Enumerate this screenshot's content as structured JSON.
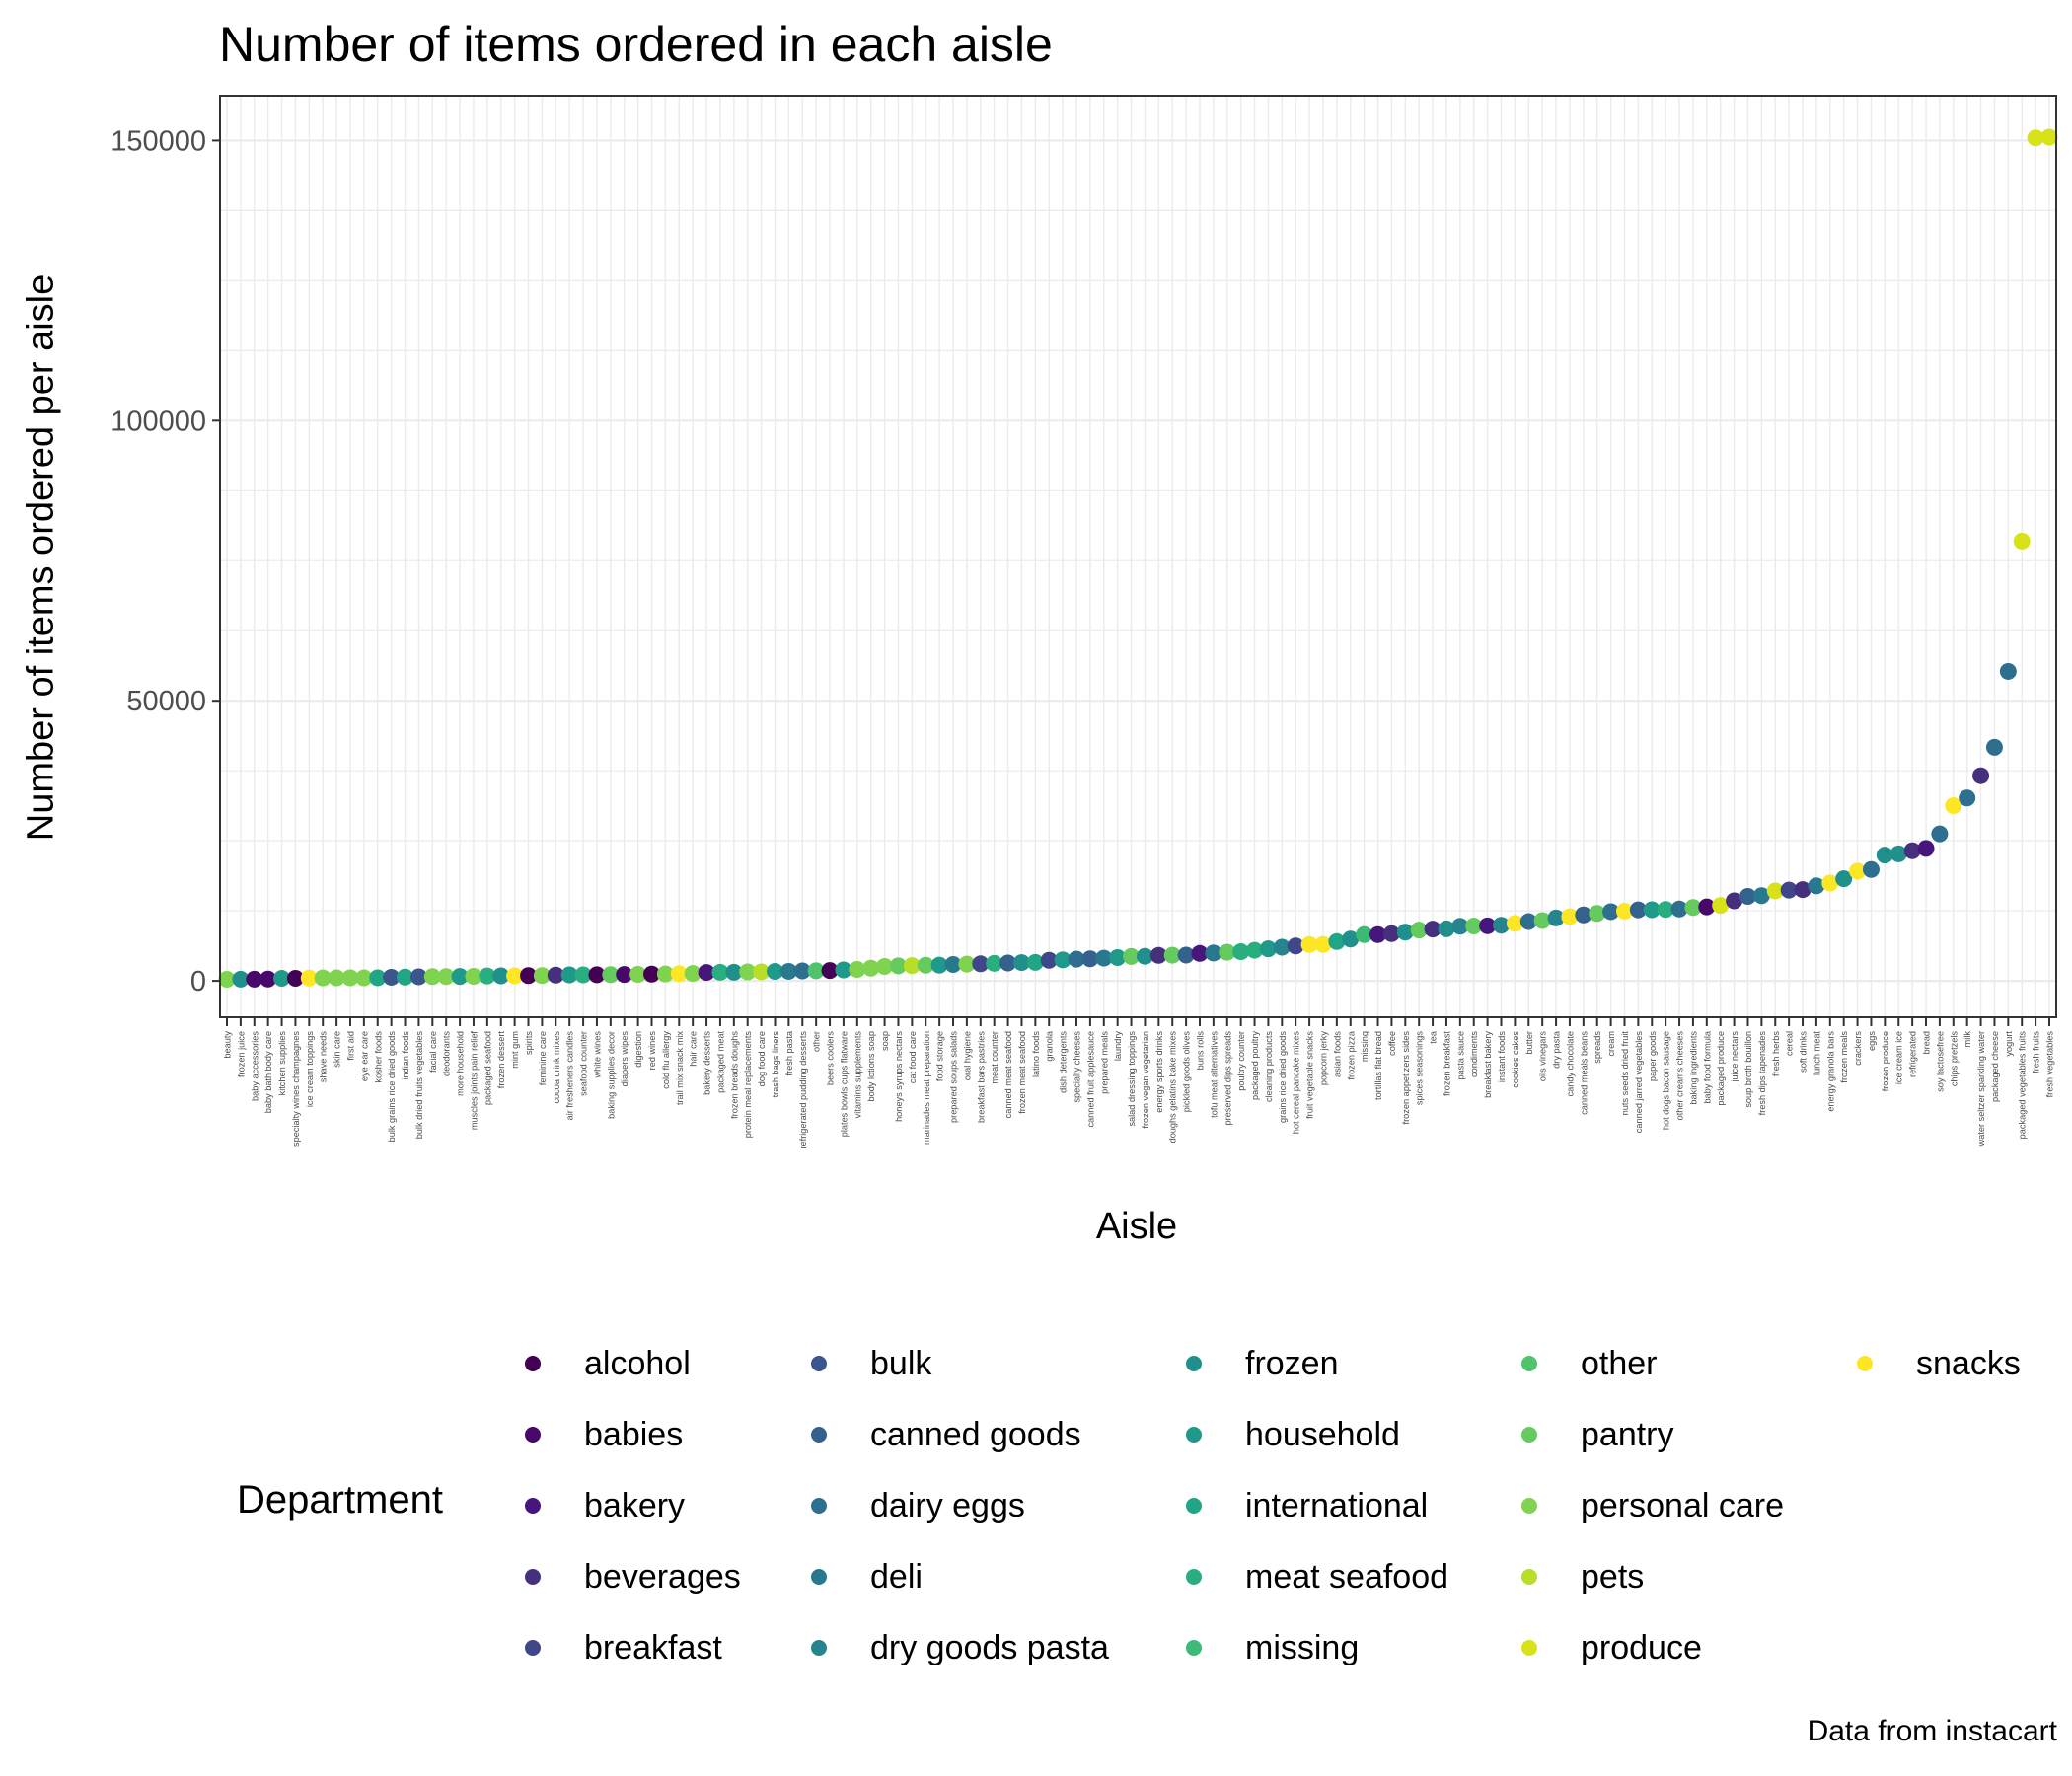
{
  "chart_data": {
    "type": "scatter",
    "title": "Number of items ordered in each aisle",
    "xlabel": "Aisle",
    "ylabel": "Number of items ordered per aisle",
    "caption": "Data from instacart",
    "yticks": [
      0,
      50000,
      100000,
      150000
    ],
    "ylim": [
      -6500,
      158000
    ],
    "grid": true,
    "legend": {
      "title": "Department",
      "position": "bottom",
      "entries": [
        {
          "name": "alcohol",
          "color": "#440154"
        },
        {
          "name": "babies",
          "color": "#48086a"
        },
        {
          "name": "bakery",
          "color": "#47167c"
        },
        {
          "name": "beverages",
          "color": "#46307e"
        },
        {
          "name": "breakfast",
          "color": "#404789"
        },
        {
          "name": "bulk",
          "color": "#3a568c"
        },
        {
          "name": "canned goods",
          "color": "#34628d"
        },
        {
          "name": "dairy eggs",
          "color": "#2e6e8e"
        },
        {
          "name": "deli",
          "color": "#29798e"
        },
        {
          "name": "dry goods pasta",
          "color": "#25848e"
        },
        {
          "name": "frozen",
          "color": "#21908c"
        },
        {
          "name": "household",
          "color": "#1f998a"
        },
        {
          "name": "international",
          "color": "#21a685"
        },
        {
          "name": "meat seafood",
          "color": "#29af7f"
        },
        {
          "name": "missing",
          "color": "#3bbb75"
        },
        {
          "name": "other",
          "color": "#50c46a"
        },
        {
          "name": "pantry",
          "color": "#65cb5e"
        },
        {
          "name": "personal care",
          "color": "#7fd34e"
        },
        {
          "name": "pets",
          "color": "#b8de29"
        },
        {
          "name": "produce",
          "color": "#d8e219"
        },
        {
          "name": "snacks",
          "color": "#fde725"
        }
      ]
    },
    "points": [
      {
        "x": "beauty",
        "dept": "personal care",
        "y": 287
      },
      {
        "x": "frozen juice",
        "dept": "frozen",
        "y": 294
      },
      {
        "x": "baby accessories",
        "dept": "babies",
        "y": 306
      },
      {
        "x": "baby bath body care",
        "dept": "babies",
        "y": 328
      },
      {
        "x": "kitchen supplies",
        "dept": "household",
        "y": 448
      },
      {
        "x": "specialty wines champagnes",
        "dept": "alcohol",
        "y": 461
      },
      {
        "x": "ice cream toppings",
        "dept": "snacks",
        "y": 504
      },
      {
        "x": "shave needs",
        "dept": "personal care",
        "y": 532
      },
      {
        "x": "skin care",
        "dept": "personal care",
        "y": 534
      },
      {
        "x": "first aid",
        "dept": "personal care",
        "y": 539
      },
      {
        "x": "eye ear care",
        "dept": "personal care",
        "y": 549
      },
      {
        "x": "kosher foods",
        "dept": "international",
        "y": 555
      },
      {
        "x": "bulk grains rice dried goods",
        "dept": "bulk",
        "y": 643
      },
      {
        "x": "indian foods",
        "dept": "international",
        "y": 681
      },
      {
        "x": "bulk dried fruits vegetables",
        "dept": "bulk",
        "y": 730
      },
      {
        "x": "facial care",
        "dept": "personal care",
        "y": 765
      },
      {
        "x": "deodorants",
        "dept": "personal care",
        "y": 767
      },
      {
        "x": "more household",
        "dept": "household",
        "y": 793
      },
      {
        "x": "muscles joints pain relief",
        "dept": "personal care",
        "y": 816
      },
      {
        "x": "packaged seafood",
        "dept": "meat seafood",
        "y": 876
      },
      {
        "x": "frozen dessert",
        "dept": "frozen",
        "y": 891
      },
      {
        "x": "mint gum",
        "dept": "snacks",
        "y": 904
      },
      {
        "x": "spirits",
        "dept": "alcohol",
        "y": 937
      },
      {
        "x": "feminine care",
        "dept": "personal care",
        "y": 952
      },
      {
        "x": "cocoa drink mixes",
        "dept": "beverages",
        "y": 1024
      },
      {
        "x": "air fresheners candles",
        "dept": "household",
        "y": 1067
      },
      {
        "x": "seafood counter",
        "dept": "meat seafood",
        "y": 1077
      },
      {
        "x": "white wines",
        "dept": "alcohol",
        "y": 1095
      },
      {
        "x": "baking supplies decor",
        "dept": "pantry",
        "y": 1120
      },
      {
        "x": "diapers wipes",
        "dept": "babies",
        "y": 1143
      },
      {
        "x": "digestion",
        "dept": "personal care",
        "y": 1159
      },
      {
        "x": "red wines",
        "dept": "alcohol",
        "y": 1209
      },
      {
        "x": "cold flu allergy",
        "dept": "personal care",
        "y": 1227
      },
      {
        "x": "trail mix snack mix",
        "dept": "snacks",
        "y": 1284
      },
      {
        "x": "hair care",
        "dept": "personal care",
        "y": 1324
      },
      {
        "x": "bakery desserts",
        "dept": "bakery",
        "y": 1501
      },
      {
        "x": "packaged meat",
        "dept": "meat seafood",
        "y": 1526
      },
      {
        "x": "frozen breads doughs",
        "dept": "frozen",
        "y": 1542
      },
      {
        "x": "protein meal replacements",
        "dept": "personal care",
        "y": 1609
      },
      {
        "x": "dog food care",
        "dept": "pets",
        "y": 1612
      },
      {
        "x": "trash bags liners",
        "dept": "household",
        "y": 1692
      },
      {
        "x": "fresh pasta",
        "dept": "deli",
        "y": 1700
      },
      {
        "x": "refrigerated pudding desserts",
        "dept": "dairy eggs",
        "y": 1774
      },
      {
        "x": "other",
        "dept": "other",
        "y": 1795
      },
      {
        "x": "beers coolers",
        "dept": "alcohol",
        "y": 1839
      },
      {
        "x": "plates bowls cups flatware",
        "dept": "household",
        "y": 1959
      },
      {
        "x": "vitamins supplements",
        "dept": "personal care",
        "y": 2043
      },
      {
        "x": "body lotions soap",
        "dept": "personal care",
        "y": 2266
      },
      {
        "x": "soap",
        "dept": "personal care",
        "y": 2570
      },
      {
        "x": "honeys syrups nectars",
        "dept": "pantry",
        "y": 2679
      },
      {
        "x": "cat food care",
        "dept": "pets",
        "y": 2728
      },
      {
        "x": "marinades meat preparation",
        "dept": "pantry",
        "y": 2788
      },
      {
        "x": "food storage",
        "dept": "household",
        "y": 2803
      },
      {
        "x": "prepared soups salads",
        "dept": "deli",
        "y": 2930
      },
      {
        "x": "oral hygiene",
        "dept": "personal care",
        "y": 2993
      },
      {
        "x": "breakfast bars pastries",
        "dept": "breakfast",
        "y": 3045
      },
      {
        "x": "meat counter",
        "dept": "meat seafood",
        "y": 3129
      },
      {
        "x": "canned meat seafood",
        "dept": "canned goods",
        "y": 3185
      },
      {
        "x": "frozen meat seafood",
        "dept": "frozen",
        "y": 3261
      },
      {
        "x": "latino foods",
        "dept": "international",
        "y": 3303
      },
      {
        "x": "granola",
        "dept": "breakfast",
        "y": 3674
      },
      {
        "x": "dish detergents",
        "dept": "household",
        "y": 3747
      },
      {
        "x": "specialty cheeses",
        "dept": "dairy eggs",
        "y": 3873
      },
      {
        "x": "canned fruit applesauce",
        "dept": "canned goods",
        "y": 3941
      },
      {
        "x": "prepared meals",
        "dept": "deli",
        "y": 4055
      },
      {
        "x": "laundry",
        "dept": "household",
        "y": 4154
      },
      {
        "x": "salad dressing toppings",
        "dept": "pantry",
        "y": 4356
      },
      {
        "x": "frozen vegan vegetarian",
        "dept": "frozen",
        "y": 4384
      },
      {
        "x": "energy sports drinks",
        "dept": "beverages",
        "y": 4543
      },
      {
        "x": "doughs gelatins bake mixes",
        "dept": "pantry",
        "y": 4575
      },
      {
        "x": "pickled goods olives",
        "dept": "canned goods",
        "y": 4600
      },
      {
        "x": "buns rolls",
        "dept": "bakery",
        "y": 4893
      },
      {
        "x": "tofu meat alternatives",
        "dept": "deli",
        "y": 4967
      },
      {
        "x": "preserved dips spreads",
        "dept": "pantry",
        "y": 5106
      },
      {
        "x": "poultry counter",
        "dept": "meat seafood",
        "y": 5201
      },
      {
        "x": "packaged poultry",
        "dept": "meat seafood",
        "y": 5462
      },
      {
        "x": "cleaning products",
        "dept": "household",
        "y": 5722
      },
      {
        "x": "grains rice dried goods",
        "dept": "dry goods pasta",
        "y": 6002
      },
      {
        "x": "hot cereal pancake mixes",
        "dept": "breakfast",
        "y": 6227
      },
      {
        "x": "fruit vegetable snacks",
        "dept": "snacks",
        "y": 6472
      },
      {
        "x": "popcorn jerky",
        "dept": "snacks",
        "y": 6494
      },
      {
        "x": "asian foods",
        "dept": "international",
        "y": 7007
      },
      {
        "x": "frozen pizza",
        "dept": "frozen",
        "y": 7451
      },
      {
        "x": "missing",
        "dept": "missing",
        "y": 8251
      },
      {
        "x": "tortillas flat bread",
        "dept": "bakery",
        "y": 8252
      },
      {
        "x": "coffee",
        "dept": "beverages",
        "y": 8433
      },
      {
        "x": "frozen appetizers sides",
        "dept": "frozen",
        "y": 8694
      },
      {
        "x": "spices seasonings",
        "dept": "pantry",
        "y": 9071
      },
      {
        "x": "tea",
        "dept": "beverages",
        "y": 9233
      },
      {
        "x": "frozen breakfast",
        "dept": "frozen",
        "y": 9284
      },
      {
        "x": "pasta sauce",
        "dept": "dry goods pasta",
        "y": 9738
      },
      {
        "x": "condiments",
        "dept": "pantry",
        "y": 9782
      },
      {
        "x": "breakfast bakery",
        "dept": "bakery",
        "y": 9823
      },
      {
        "x": "instant foods",
        "dept": "dry goods pasta",
        "y": 9917
      },
      {
        "x": "cookies cakes",
        "dept": "snacks",
        "y": 10245
      },
      {
        "x": "butter",
        "dept": "dairy eggs",
        "y": 10575
      },
      {
        "x": "oils vinegars",
        "dept": "pantry",
        "y": 10762
      },
      {
        "x": "dry pasta",
        "dept": "dry goods pasta",
        "y": 11217
      },
      {
        "x": "candy chocolate",
        "dept": "snacks",
        "y": 11453
      },
      {
        "x": "canned meals beans",
        "dept": "canned goods",
        "y": 11774
      },
      {
        "x": "spreads",
        "dept": "pantry",
        "y": 12032
      },
      {
        "x": "cream",
        "dept": "dairy eggs",
        "y": 12356
      },
      {
        "x": "nuts seeds dried fruit",
        "dept": "snacks",
        "y": 12448
      },
      {
        "x": "canned jarred vegetables",
        "dept": "canned goods",
        "y": 12679
      },
      {
        "x": "paper goods",
        "dept": "household",
        "y": 12705
      },
      {
        "x": "hot dogs bacon sausage",
        "dept": "meat seafood",
        "y": 12745
      },
      {
        "x": "other creams cheeses",
        "dept": "dairy eggs",
        "y": 12820
      },
      {
        "x": "baking ingredients",
        "dept": "pantry",
        "y": 13088
      },
      {
        "x": "baby food formula",
        "dept": "babies",
        "y": 13198
      },
      {
        "x": "packaged produce",
        "dept": "produce",
        "y": 13460
      },
      {
        "x": "juice nectars",
        "dept": "beverages",
        "y": 14279
      },
      {
        "x": "soup broth bouillon",
        "dept": "canned goods",
        "y": 15068
      },
      {
        "x": "fresh dips tapenades",
        "dept": "deli",
        "y": 15206
      },
      {
        "x": "fresh herbs",
        "dept": "produce",
        "y": 16052
      },
      {
        "x": "cereal",
        "dept": "breakfast",
        "y": 16201
      },
      {
        "x": "soft drinks",
        "dept": "beverages",
        "y": 16279
      },
      {
        "x": "lunch meat",
        "dept": "deli",
        "y": 16957
      },
      {
        "x": "energy granola bars",
        "dept": "snacks",
        "y": 17449
      },
      {
        "x": "frozen meals",
        "dept": "frozen",
        "y": 18221
      },
      {
        "x": "crackers",
        "dept": "snacks",
        "y": 19592
      },
      {
        "x": "eggs",
        "dept": "dairy eggs",
        "y": 19875
      },
      {
        "x": "frozen produce",
        "dept": "frozen",
        "y": 22453
      },
      {
        "x": "ice cream ice",
        "dept": "frozen",
        "y": 22676
      },
      {
        "x": "refrigerated",
        "dept": "beverages",
        "y": 23228
      },
      {
        "x": "bread",
        "dept": "bakery",
        "y": 23635
      },
      {
        "x": "soy lactosefree",
        "dept": "dairy eggs",
        "y": 26240
      },
      {
        "x": "chips pretzels",
        "dept": "snacks",
        "y": 31269
      },
      {
        "x": "milk",
        "dept": "dairy eggs",
        "y": 32644
      },
      {
        "x": "water seltzer sparkling water",
        "dept": "beverages",
        "y": 36617
      },
      {
        "x": "packaged cheese",
        "dept": "dairy eggs",
        "y": 41699
      },
      {
        "x": "yogurt",
        "dept": "dairy eggs",
        "y": 55240
      },
      {
        "x": "packaged vegetables fruits",
        "dept": "produce",
        "y": 78493
      },
      {
        "x": "fresh fruits",
        "dept": "produce",
        "y": 150473
      },
      {
        "x": "fresh vegetables",
        "dept": "produce",
        "y": 150609
      }
    ]
  }
}
